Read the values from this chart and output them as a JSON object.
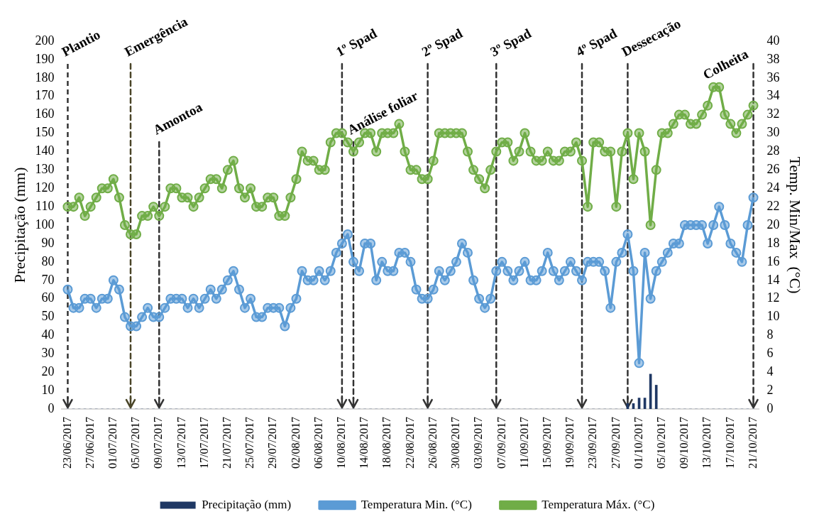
{
  "chart_data": {
    "type": "line",
    "ylabel": "Precipitação (mm)",
    "y2label": "Temp. Min/Max  (°C)",
    "x": [
      "2017-06-23",
      "2017-06-24",
      "2017-06-25",
      "2017-06-26",
      "2017-06-27",
      "2017-06-28",
      "2017-06-29",
      "2017-06-30",
      "2017-07-01",
      "2017-07-02",
      "2017-07-03",
      "2017-07-04",
      "2017-07-05",
      "2017-07-06",
      "2017-07-07",
      "2017-07-08",
      "2017-07-09",
      "2017-07-10",
      "2017-07-11",
      "2017-07-12",
      "2017-07-13",
      "2017-07-14",
      "2017-07-15",
      "2017-07-16",
      "2017-07-17",
      "2017-07-18",
      "2017-07-19",
      "2017-07-20",
      "2017-07-21",
      "2017-07-22",
      "2017-07-23",
      "2017-07-24",
      "2017-07-25",
      "2017-07-26",
      "2017-07-27",
      "2017-07-28",
      "2017-07-29",
      "2017-07-30",
      "2017-07-31",
      "2017-08-01",
      "2017-08-02",
      "2017-08-03",
      "2017-08-04",
      "2017-08-05",
      "2017-08-06",
      "2017-08-07",
      "2017-08-08",
      "2017-08-09",
      "2017-08-10",
      "2017-08-11",
      "2017-08-12",
      "2017-08-13",
      "2017-08-14",
      "2017-08-15",
      "2017-08-16",
      "2017-08-17",
      "2017-08-18",
      "2017-08-19",
      "2017-08-20",
      "2017-08-21",
      "2017-08-22",
      "2017-08-23",
      "2017-08-24",
      "2017-08-25",
      "2017-08-26",
      "2017-08-27",
      "2017-08-28",
      "2017-08-29",
      "2017-08-30",
      "2017-08-31",
      "2017-09-01",
      "2017-09-02",
      "2017-09-03",
      "2017-09-04",
      "2017-09-05",
      "2017-09-06",
      "2017-09-07",
      "2017-09-08",
      "2017-09-09",
      "2017-09-10",
      "2017-09-11",
      "2017-09-12",
      "2017-09-13",
      "2017-09-14",
      "2017-09-15",
      "2017-09-16",
      "2017-09-17",
      "2017-09-18",
      "2017-09-19",
      "2017-09-20",
      "2017-09-21",
      "2017-09-22",
      "2017-09-23",
      "2017-09-24",
      "2017-09-25",
      "2017-09-26",
      "2017-09-27",
      "2017-09-28",
      "2017-09-29",
      "2017-09-30",
      "2017-10-01",
      "2017-10-02",
      "2017-10-03",
      "2017-10-04",
      "2017-10-05",
      "2017-10-06",
      "2017-10-07",
      "2017-10-08",
      "2017-10-09",
      "2017-10-10",
      "2017-10-11",
      "2017-10-12",
      "2017-10-13",
      "2017-10-14",
      "2017-10-15",
      "2017-10-16",
      "2017-10-17",
      "2017-10-18",
      "2017-10-19",
      "2017-10-20",
      "2017-10-21"
    ],
    "series": [
      {
        "name": "Precipitação (mm)",
        "type": "bar",
        "color": "#1f3864",
        "values": [
          0,
          0,
          0,
          0,
          0,
          0,
          0,
          0,
          0,
          0,
          0,
          0,
          0,
          0,
          0,
          0,
          0,
          0,
          0,
          0,
          0,
          0,
          0,
          0,
          0,
          0,
          0,
          0,
          0,
          0,
          0,
          0,
          0,
          0,
          0,
          0,
          0,
          0,
          0,
          0,
          0,
          0,
          0,
          0,
          0,
          0,
          0,
          0,
          0,
          0,
          0,
          0,
          0,
          0,
          0,
          0,
          0,
          0,
          0,
          0,
          0,
          0,
          0,
          0,
          0,
          0,
          0,
          0,
          0,
          0,
          0,
          0,
          0,
          0,
          0,
          0,
          0,
          0,
          0,
          0,
          0,
          0,
          0,
          0,
          0,
          0,
          0,
          0,
          0,
          0,
          0,
          0,
          0,
          0,
          0,
          0,
          0,
          0,
          3,
          3,
          6,
          6,
          19,
          13,
          0,
          0,
          0,
          0,
          0,
          0,
          0,
          0,
          0,
          0,
          0,
          0,
          0,
          0,
          0,
          0,
          0
        ]
      },
      {
        "name": "Temperatura Min. (°C)",
        "axis": "y2",
        "color": "#5b9bd5",
        "values": [
          13,
          11,
          11,
          12,
          12,
          11,
          12,
          12,
          14,
          13,
          10,
          9,
          9,
          10,
          11,
          10,
          10,
          11,
          12,
          12,
          12,
          11,
          12,
          11,
          12,
          13,
          12,
          13,
          14,
          15,
          13,
          11,
          12,
          10,
          10,
          11,
          11,
          11,
          9,
          11,
          12,
          15,
          14,
          14,
          15,
          14,
          15,
          17,
          18,
          19,
          16,
          15,
          18,
          18,
          14,
          16,
          15,
          15,
          17,
          17,
          16,
          13,
          12,
          12,
          13,
          15,
          14,
          15,
          16,
          18,
          17,
          14,
          12,
          11,
          12,
          15,
          16,
          15,
          14,
          15,
          16,
          14,
          14,
          15,
          17,
          15,
          14,
          15,
          16,
          15,
          14,
          16,
          16,
          16,
          15,
          11,
          16,
          17,
          19,
          15,
          5,
          17,
          12,
          15,
          16,
          17,
          18,
          18,
          20,
          20,
          20,
          20,
          18,
          20,
          22,
          20,
          18,
          17,
          16,
          20,
          23
        ]
      },
      {
        "name": "Temperatura Máx. (°C)",
        "axis": "y2",
        "color": "#70ad47",
        "values": [
          22,
          22,
          23,
          21,
          22,
          23,
          24,
          24,
          25,
          23,
          20,
          19,
          19,
          21,
          21,
          22,
          21,
          22,
          24,
          24,
          23,
          23,
          22,
          23,
          24,
          25,
          25,
          24,
          26,
          27,
          24,
          23,
          24,
          22,
          22,
          23,
          23,
          21,
          21,
          23,
          25,
          28,
          27,
          27,
          26,
          26,
          29,
          30,
          30,
          29,
          28,
          29,
          30,
          30,
          28,
          30,
          30,
          30,
          31,
          28,
          26,
          26,
          25,
          25,
          27,
          30,
          30,
          30,
          30,
          30,
          28,
          26,
          25,
          24,
          26,
          28,
          29,
          29,
          27,
          28,
          30,
          28,
          27,
          27,
          28,
          27,
          27,
          28,
          28,
          29,
          27,
          22,
          29,
          29,
          28,
          28,
          22,
          28,
          30,
          25,
          30,
          28,
          20,
          26,
          30,
          30,
          31,
          32,
          32,
          31,
          31,
          32,
          33,
          35,
          35,
          32,
          31,
          30,
          31,
          32,
          33
        ]
      }
    ],
    "xlim": [
      "2017-06-22",
      "2017-10-22"
    ],
    "xticks": [
      {
        "value": "2017-06-23",
        "label": "23/06/2017"
      },
      {
        "value": "2017-06-27",
        "label": "27/06/2017"
      },
      {
        "value": "2017-07-01",
        "label": "01/07/2017"
      },
      {
        "value": "2017-07-05",
        "label": "05/07/2017"
      },
      {
        "value": "2017-07-09",
        "label": "09/07/2017"
      },
      {
        "value": "2017-07-13",
        "label": "13/07/2017"
      },
      {
        "value": "2017-07-17",
        "label": "17/07/2017"
      },
      {
        "value": "2017-07-21",
        "label": "21/07/2017"
      },
      {
        "value": "2017-07-25",
        "label": "25/07/2017"
      },
      {
        "value": "2017-07-29",
        "label": "29/07/2017"
      },
      {
        "value": "2017-08-02",
        "label": "02/08/2017"
      },
      {
        "value": "2017-08-06",
        "label": "06/08/2017"
      },
      {
        "value": "2017-08-10",
        "label": "10/08/2017"
      },
      {
        "value": "2017-08-14",
        "label": "14/08/2017"
      },
      {
        "value": "2017-08-18",
        "label": "18/08/2017"
      },
      {
        "value": "2017-08-22",
        "label": "22/08/2017"
      },
      {
        "value": "2017-08-26",
        "label": "26/08/2017"
      },
      {
        "value": "2017-08-30",
        "label": "30/08/2017"
      },
      {
        "value": "2017-09-03",
        "label": "03/09/2017"
      },
      {
        "value": "2017-09-07",
        "label": "07/09/2017"
      },
      {
        "value": "2017-09-11",
        "label": "11/09/2017"
      },
      {
        "value": "2017-09-15",
        "label": "15/09/2017"
      },
      {
        "value": "2017-09-19",
        "label": "19/09/2017"
      },
      {
        "value": "2017-09-23",
        "label": "23/09/2017"
      },
      {
        "value": "2017-09-27",
        "label": "27/09/2017"
      },
      {
        "value": "2017-10-01",
        "label": "01/10/2017"
      },
      {
        "value": "2017-10-05",
        "label": "05/10/2017"
      },
      {
        "value": "2017-10-09",
        "label": "09/10/2017"
      },
      {
        "value": "2017-10-13",
        "label": "13/10/2017"
      },
      {
        "value": "2017-10-17",
        "label": "17/10/2017"
      },
      {
        "value": "2017-10-21",
        "label": "21/10/2017"
      }
    ],
    "ylim": [
      0,
      200
    ],
    "yticks": [
      0,
      10,
      20,
      30,
      40,
      50,
      60,
      70,
      80,
      90,
      100,
      110,
      120,
      130,
      140,
      150,
      160,
      170,
      180,
      190,
      200
    ],
    "y2lim": [
      0,
      40
    ],
    "y2ticks": [
      0,
      2,
      4,
      6,
      8,
      10,
      12,
      14,
      16,
      18,
      20,
      22,
      24,
      26,
      28,
      30,
      32,
      34,
      36,
      38,
      40
    ],
    "ref_lines": [
      {
        "axis": "x",
        "value": "2017-06-23",
        "label": "Plantio",
        "color": "#333333",
        "line_style": "dashed"
      },
      {
        "axis": "x",
        "value": "2017-07-04",
        "label": "Emergência",
        "color": "#4a4528",
        "line_style": "dashed"
      },
      {
        "axis": "x",
        "value": "2017-07-09",
        "label": "Amontoa",
        "color": "#333333",
        "line_style": "dashed"
      },
      {
        "axis": "x",
        "value": "2017-08-10",
        "label": "1º Spad",
        "color": "#333333",
        "line_style": "dashed"
      },
      {
        "axis": "x",
        "value": "2017-08-12",
        "label": "Análise foliar",
        "color": "#333333",
        "line_style": "dashed"
      },
      {
        "axis": "x",
        "value": "2017-08-25",
        "label": "2º Spad",
        "color": "#333333",
        "line_style": "dashed"
      },
      {
        "axis": "x",
        "value": "2017-09-06",
        "label": "3º Spad",
        "color": "#333333",
        "line_style": "dashed"
      },
      {
        "axis": "x",
        "value": "2017-09-21",
        "label": "4º Spad",
        "color": "#333333",
        "line_style": "dashed"
      },
      {
        "axis": "x",
        "value": "2017-09-29",
        "label": "Dessecação",
        "color": "#333333",
        "line_style": "dashed"
      },
      {
        "axis": "x",
        "value": "2017-10-21",
        "label": "Colheita",
        "color": "#333333",
        "line_style": "dashed"
      }
    ],
    "legend": "bottom",
    "grid": false,
    "marker": "circle",
    "line_style": "solid"
  }
}
